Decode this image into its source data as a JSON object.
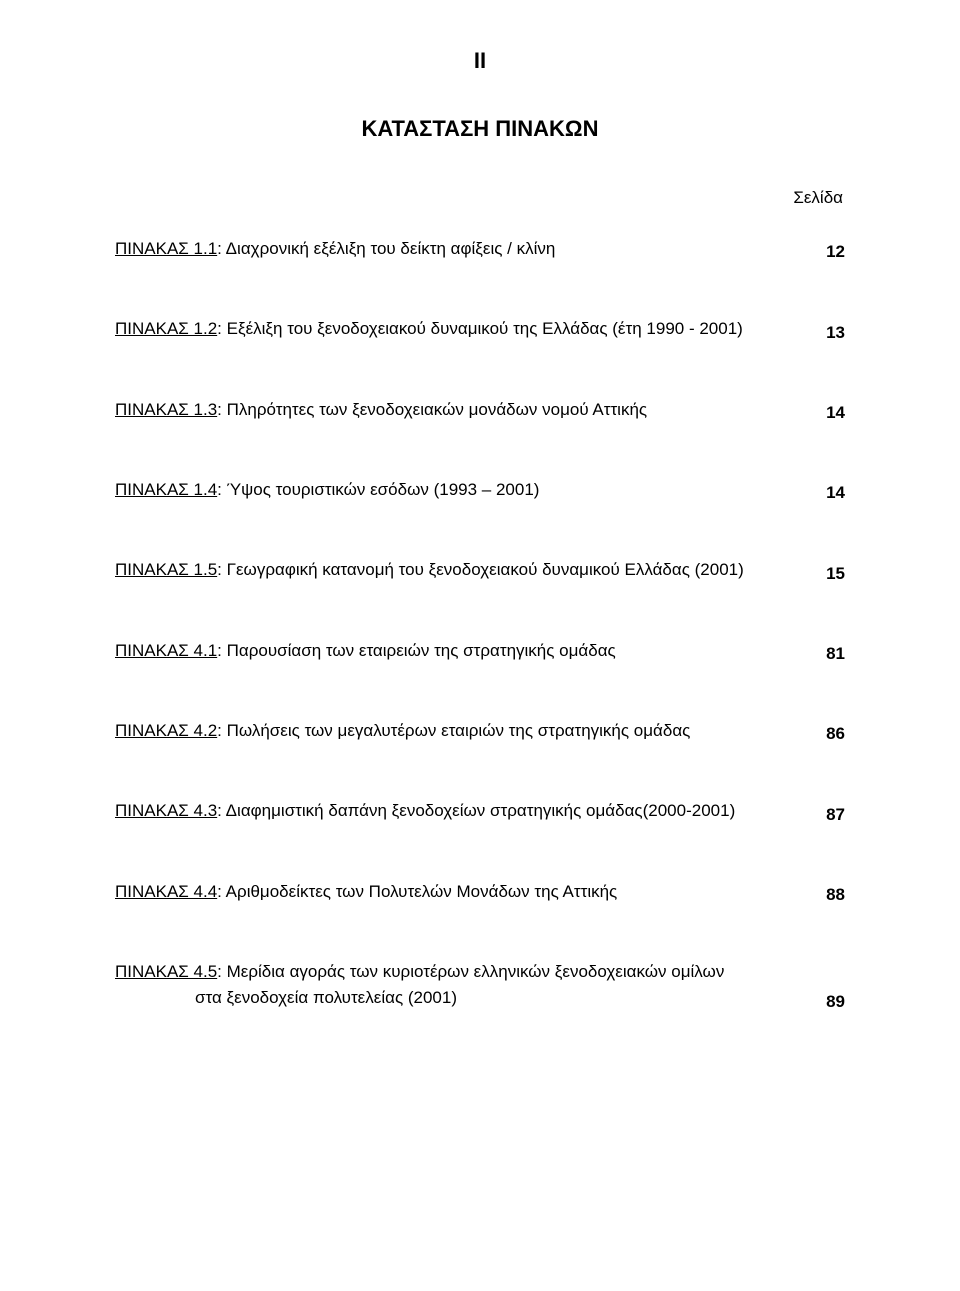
{
  "page": {
    "roman_numeral": "II",
    "heading": "ΚΑΤΑΣΤΑΣΗ ΠΙΝΑΚΩΝ",
    "column_header": "Σελίδα",
    "background_color": "#ffffff",
    "text_color": "#000000",
    "font_family": "Arial",
    "base_fontsize_pt": 12,
    "heading_fontsize_pt": 16,
    "roman_fontsize_pt": 16
  },
  "entries": [
    {
      "label": "ΠΙΝΑΚΑΣ 1.1",
      "desc": ": Διαχρονική εξέλιξη του δείκτη αφίξεις / κλίνη",
      "page": "12"
    },
    {
      "label": "ΠΙΝΑΚΑΣ 1.2",
      "desc": ": Εξέλιξη του ξενοδοχειακού δυναμικού της Ελλάδας (έτη 1990 - 2001)",
      "page": "13"
    },
    {
      "label": "ΠΙΝΑΚΑΣ 1.3",
      "desc": ": Πληρότητες των ξενοδοχειακών μονάδων νομού Αττικής",
      "page": "14"
    },
    {
      "label": "ΠΙΝΑΚΑΣ 1.4",
      "desc": ": Ύψος τουριστικών εσόδων (1993 – 2001)",
      "page": "14"
    },
    {
      "label": "ΠΙΝΑΚΑΣ 1.5",
      "desc": ": Γεωγραφική κατανομή του ξενοδοχειακού δυναμικού Ελλάδας (2001)",
      "page": "15"
    },
    {
      "label": "ΠΙΝΑΚΑΣ 4.1",
      "desc": ": Παρουσίαση των εταιρειών της στρατηγικής ομάδας",
      "page": "81"
    },
    {
      "label": "ΠΙΝΑΚΑΣ 4.2",
      "desc": ": Πωλήσεις των μεγαλυτέρων εταιριών της στρατηγικής ομάδας",
      "page": "86"
    },
    {
      "label": "ΠΙΝΑΚΑΣ 4.3",
      "desc": ": Διαφημιστική δαπάνη ξενοδοχείων στρατηγικής ομάδας(2000-2001)",
      "page": "87"
    },
    {
      "label": "ΠΙΝΑΚΑΣ 4.4",
      "desc": ": Αριθμοδείκτες των Πολυτελών Μονάδων της Αττικής",
      "page": "88"
    },
    {
      "label": "ΠΙΝΑΚΑΣ 4.5",
      "desc_line1": ": Μερίδια αγοράς των κυριοτέρων ελληνικών ξενοδοχειακών ομίλων",
      "desc_line2": "στα ξενοδοχεία πολυτελείας (2001)",
      "page": "89"
    }
  ]
}
